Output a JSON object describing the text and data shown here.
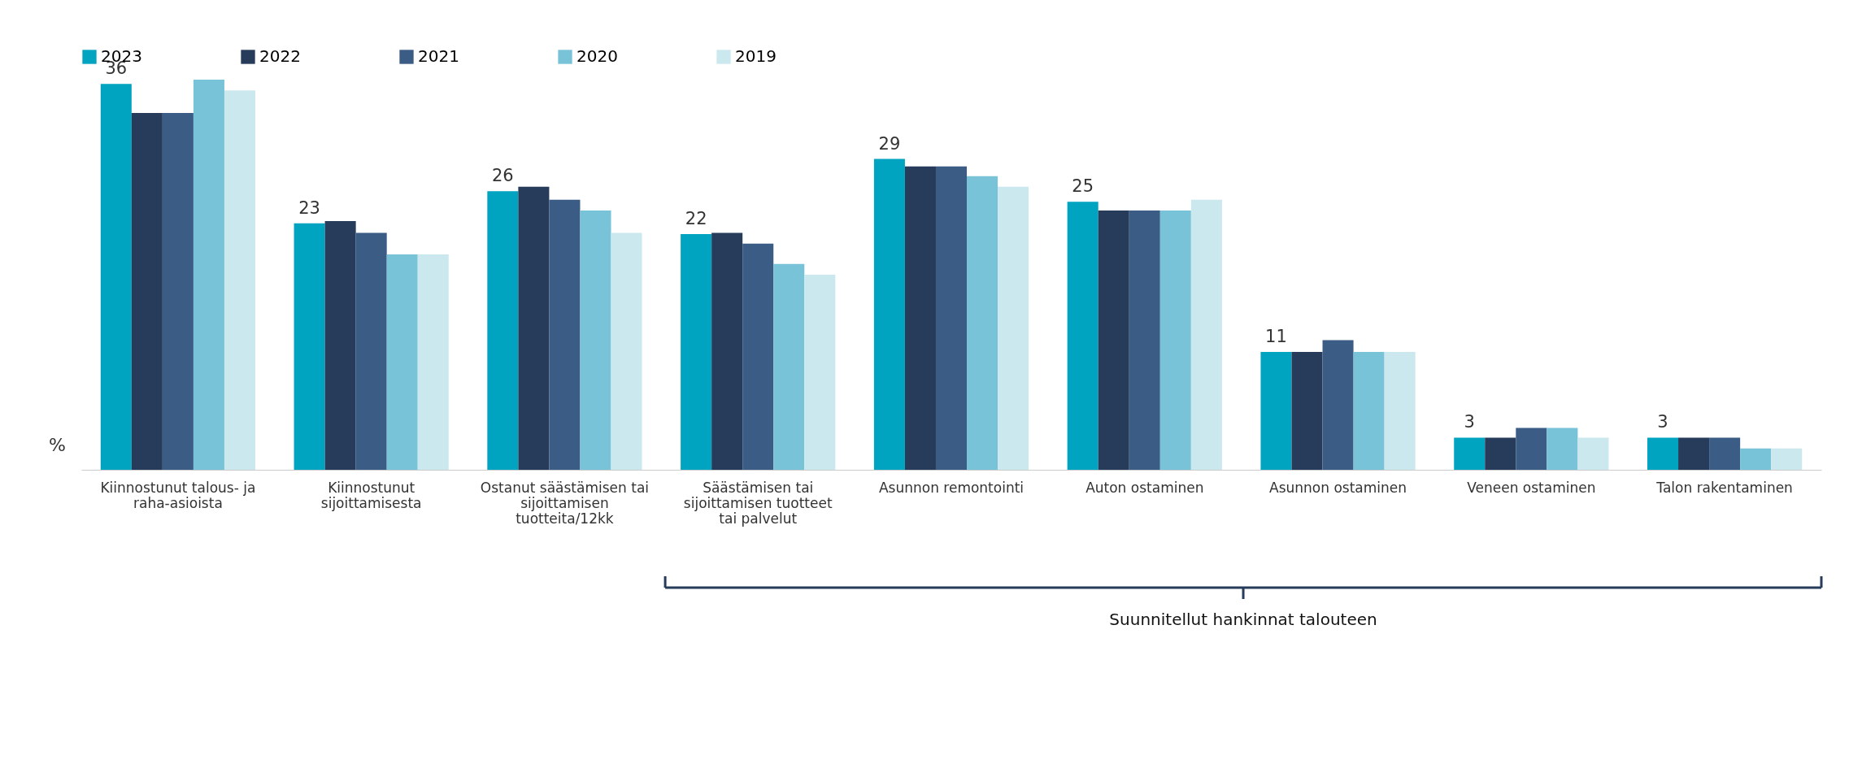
{
  "chart_data": {
    "type": "bar",
    "ylabel": "%",
    "legend": "top",
    "grid": false,
    "categories": [
      "Kiinnostunut talous- ja raha-asioista",
      "Kiinnostunut sijoittamisesta",
      "Ostanut säästämisen tai sijoittamisen tuotteita/12kk",
      "Säästämisen tai sijoittamisen tuotteet tai palvelut",
      "Asunnon remontointi",
      "Auton ostaminen",
      "Asunnon ostaminen",
      "Veneen ostaminen",
      "Talon rakentaminen"
    ],
    "series": [
      {
        "name": "2023",
        "color": "#00a3c0",
        "values": [
          36,
          23,
          26,
          22,
          29,
          25,
          11,
          3,
          3
        ],
        "value_labels": [
          "36",
          "23",
          "26",
          "22",
          "29",
          "25",
          "11",
          "3",
          "3"
        ]
      },
      {
        "name": "2022",
        "color": "#273c5a",
        "values": [
          33.3,
          23.2,
          26.4,
          22.1,
          28.3,
          24.2,
          11,
          3,
          3
        ]
      },
      {
        "name": "2021",
        "color": "#3a5c85",
        "values": [
          33.3,
          22.1,
          25.2,
          21.1,
          28.3,
          24.2,
          12.1,
          3.9,
          3
        ]
      },
      {
        "name": "2020",
        "color": "#78c3d7",
        "values": [
          36.4,
          20.1,
          24.2,
          19.2,
          27.4,
          24.2,
          11,
          3.9,
          2
        ]
      },
      {
        "name": "2019",
        "color": "#cbe8ef",
        "values": [
          35.4,
          20.1,
          22.1,
          18.2,
          26.4,
          25.2,
          11,
          3,
          2
        ]
      }
    ],
    "annotations": [
      "Suunnitellut hankinnat talouteen"
    ]
  }
}
